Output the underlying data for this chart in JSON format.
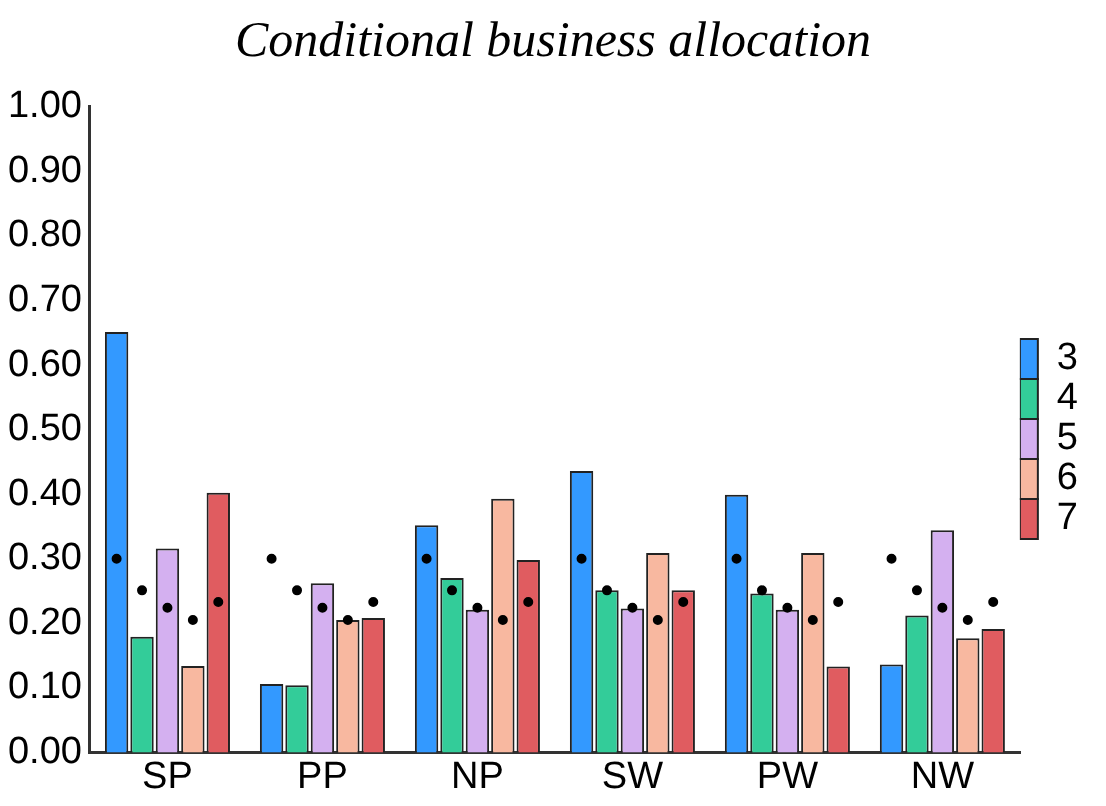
{
  "chart_data": {
    "type": "bar",
    "title": "Conditional business allocation",
    "categories": [
      "SP",
      "PP",
      "NP",
      "SW",
      "PW",
      "NW"
    ],
    "series": [
      {
        "name": "3",
        "color": "#3399ff",
        "values": [
          0.651,
          0.106,
          0.352,
          0.436,
          0.399,
          0.136
        ]
      },
      {
        "name": "4",
        "color": "#33cc99",
        "values": [
          0.179,
          0.104,
          0.27,
          0.251,
          0.246,
          0.212
        ]
      },
      {
        "name": "5",
        "color": "#d4b0f0",
        "values": [
          0.316,
          0.262,
          0.221,
          0.223,
          0.221,
          0.344
        ]
      },
      {
        "name": "6",
        "color": "#f8b8a0",
        "values": [
          0.134,
          0.205,
          0.393,
          0.309,
          0.309,
          0.177
        ]
      },
      {
        "name": "7",
        "color": "#e05c60",
        "values": [
          0.402,
          0.208,
          0.298,
          0.251,
          0.133,
          0.191
        ]
      },
      {
        "type": "scatter",
        "color": "#000000",
        "x": [
          "SP",
          "PP",
          "NP",
          "SW",
          "PW",
          "NW"
        ],
        "values": [
          0.3,
          0.3,
          0.3,
          0.3,
          0.3,
          0.3
        ]
      },
      {
        "type": "scatter",
        "color": "#000000",
        "x": [
          "SP",
          "PP",
          "NP",
          "SW",
          "PW",
          "NW"
        ],
        "values": [
          0.251,
          0.251,
          0.251,
          0.251,
          0.251,
          0.251
        ]
      },
      {
        "type": "scatter",
        "color": "#000000",
        "x": [
          "SP",
          "PP",
          "NP",
          "SW",
          "PW",
          "NW"
        ],
        "values": [
          0.224,
          0.224,
          0.224,
          0.224,
          0.224,
          0.224
        ]
      },
      {
        "type": "scatter",
        "color": "#000000",
        "x": [
          "SP",
          "PP",
          "NP",
          "SW",
          "PW",
          "NW"
        ],
        "values": [
          0.205,
          0.205,
          0.205,
          0.205,
          0.205,
          0.205
        ]
      },
      {
        "type": "scatter",
        "color": "#000000",
        "x": [
          "SP",
          "PP",
          "NP",
          "SW",
          "PW",
          "NW"
        ],
        "values": [
          0.233,
          0.233,
          0.233,
          0.233,
          0.233,
          0.233
        ]
      }
    ],
    "ylim": [
      0,
      1
    ],
    "yticks": [
      {
        "value": 0,
        "label": "0.00"
      },
      {
        "value": 0.1,
        "label": "0.10"
      },
      {
        "value": 0.2,
        "label": "0.20"
      },
      {
        "value": 0.3,
        "label": "0.30"
      },
      {
        "value": 0.4,
        "label": "0.40"
      },
      {
        "value": 0.5,
        "label": "0.50"
      },
      {
        "value": 0.6,
        "label": "0.60"
      },
      {
        "value": 0.7,
        "label": "0.70"
      },
      {
        "value": 0.8,
        "label": "0.80"
      },
      {
        "value": 0.9,
        "label": "0.90"
      },
      {
        "value": 1,
        "label": "1.00"
      }
    ],
    "grid": false,
    "legend": "right",
    "marker": "circle"
  }
}
